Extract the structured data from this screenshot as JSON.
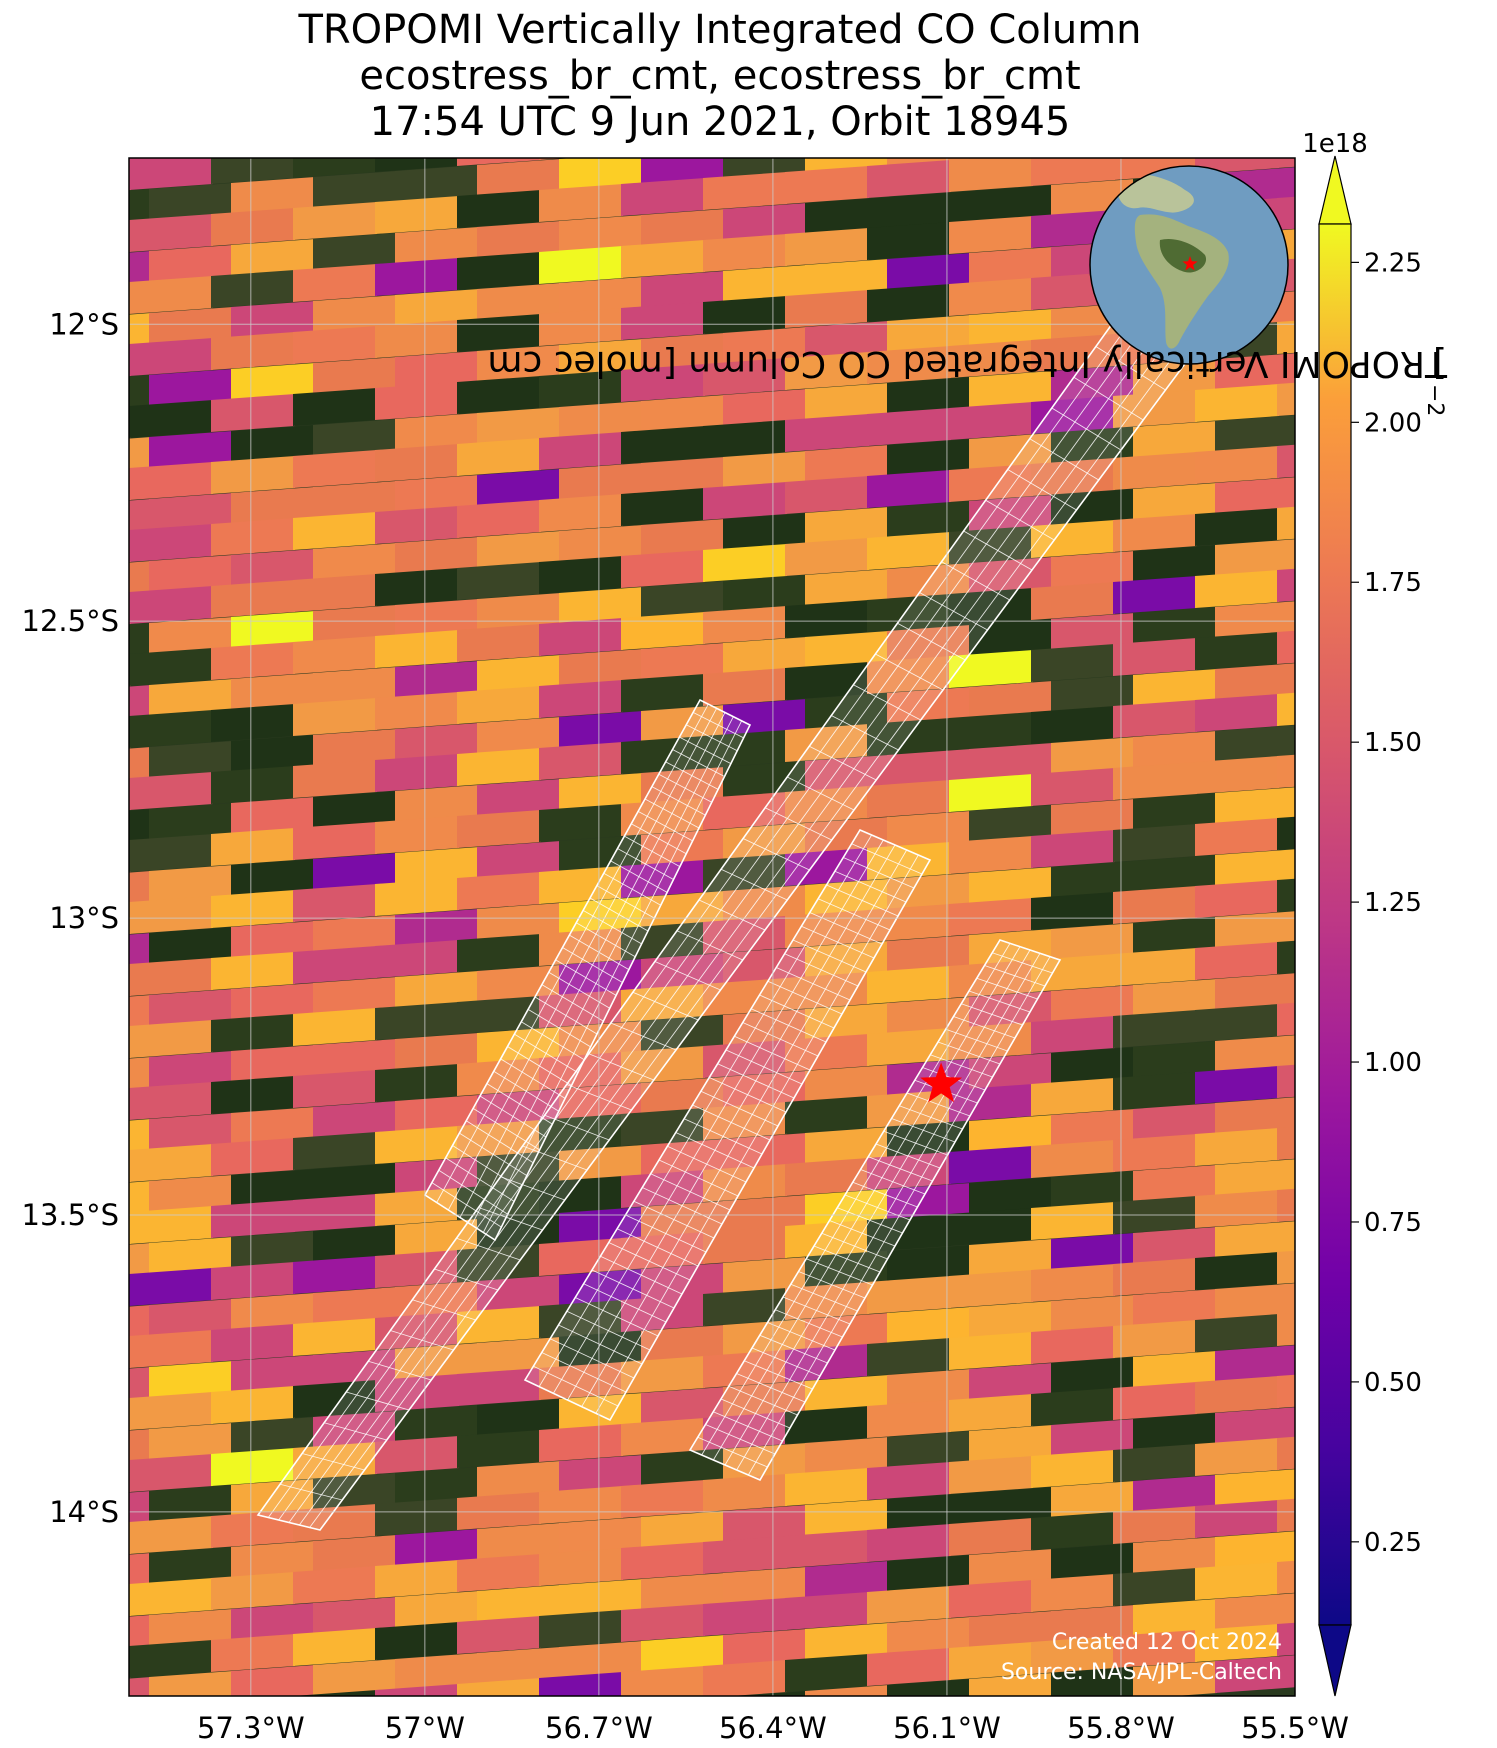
{
  "title": {
    "line1": "TROPOMI Vertically Integrated CO Column",
    "line2": "ecostress_br_cmt, ecostress_br_cmt",
    "line3": "17:54 UTC 9 Jun 2021, Orbit 18945"
  },
  "axes": {
    "lon_range": [
      -57.51,
      -55.5
    ],
    "lat_range": [
      -14.31,
      -11.72
    ],
    "lon_ticks": [
      {
        "value": -57.3,
        "label": "57.3°W"
      },
      {
        "value": -57.0,
        "label": "57°W"
      },
      {
        "value": -56.7,
        "label": "56.7°W"
      },
      {
        "value": -56.4,
        "label": "56.4°W"
      },
      {
        "value": -56.1,
        "label": "56.1°W"
      },
      {
        "value": -55.8,
        "label": "55.8°W"
      },
      {
        "value": -55.5,
        "label": "55.5°W"
      }
    ],
    "lat_ticks": [
      {
        "value": -12.0,
        "label": "12°S"
      },
      {
        "value": -12.5,
        "label": "12.5°S"
      },
      {
        "value": -13.0,
        "label": "13°S"
      },
      {
        "value": -13.5,
        "label": "13.5°S"
      },
      {
        "value": -14.0,
        "label": "14°S"
      }
    ],
    "grid": true
  },
  "site_marker": {
    "lon": -56.11,
    "lat": -13.28,
    "symbol": "star",
    "color": "#ff0000"
  },
  "inset": {
    "type": "orthographic globe",
    "marker_color": "#ff0000"
  },
  "colorbar": {
    "label": "TROPOMI Vertically Integrated CO Column [molec cm",
    "label_exponent": "−2",
    "label_end": "]",
    "scale_label": "1e18",
    "range": [
      0.12,
      2.31
    ],
    "extend": "both",
    "colormap": "plasma",
    "ticks": [
      "0.25",
      "0.50",
      "0.75",
      "1.00",
      "1.25",
      "1.50",
      "1.75",
      "2.00",
      "2.25"
    ]
  },
  "credits": {
    "created": "Created 12 Oct 2024",
    "source": "Source: NASA/JPL-Caltech"
  },
  "colors": {
    "plasma_low": "#0d0887",
    "plasma_mid": "#cc4778",
    "plasma_high": "#f0f921",
    "forest": "#1f3317",
    "grid": "#cccccc"
  }
}
